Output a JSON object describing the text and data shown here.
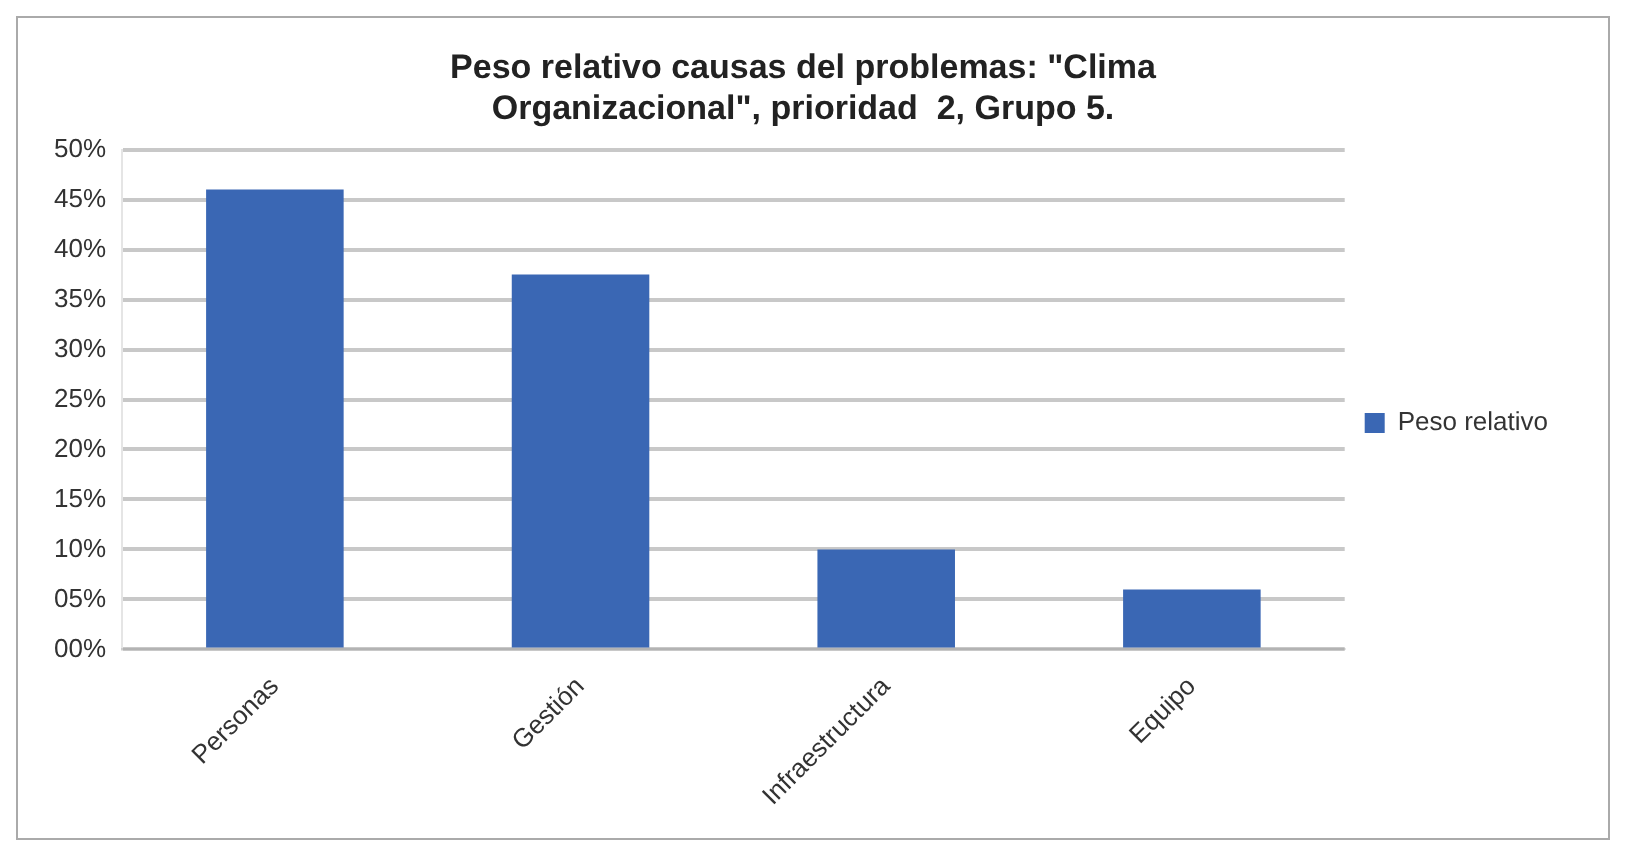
{
  "chart_data": {
    "type": "bar",
    "title": "Peso relativo causas del problemas: \"Clima Organizacional\", prioridad  2, Grupo 5.",
    "categories": [
      "Personas",
      "Gestión",
      "Infraestructura",
      "Equipo"
    ],
    "series": [
      {
        "name": "Peso relativo",
        "color": "#3a67b4",
        "values": [
          46,
          37.5,
          10,
          6
        ]
      }
    ],
    "ylim": [
      0,
      50
    ],
    "yticks": [
      {
        "value": 0,
        "label": "00%"
      },
      {
        "value": 5,
        "label": "05%"
      },
      {
        "value": 10,
        "label": "10%"
      },
      {
        "value": 15,
        "label": "15%"
      },
      {
        "value": 20,
        "label": "20%"
      },
      {
        "value": 25,
        "label": "25%"
      },
      {
        "value": 30,
        "label": "30%"
      },
      {
        "value": 35,
        "label": "35%"
      },
      {
        "value": 40,
        "label": "40%"
      },
      {
        "value": 45,
        "label": "45%"
      },
      {
        "value": 50,
        "label": "50%"
      }
    ],
    "grid": "y",
    "legend": "right"
  }
}
